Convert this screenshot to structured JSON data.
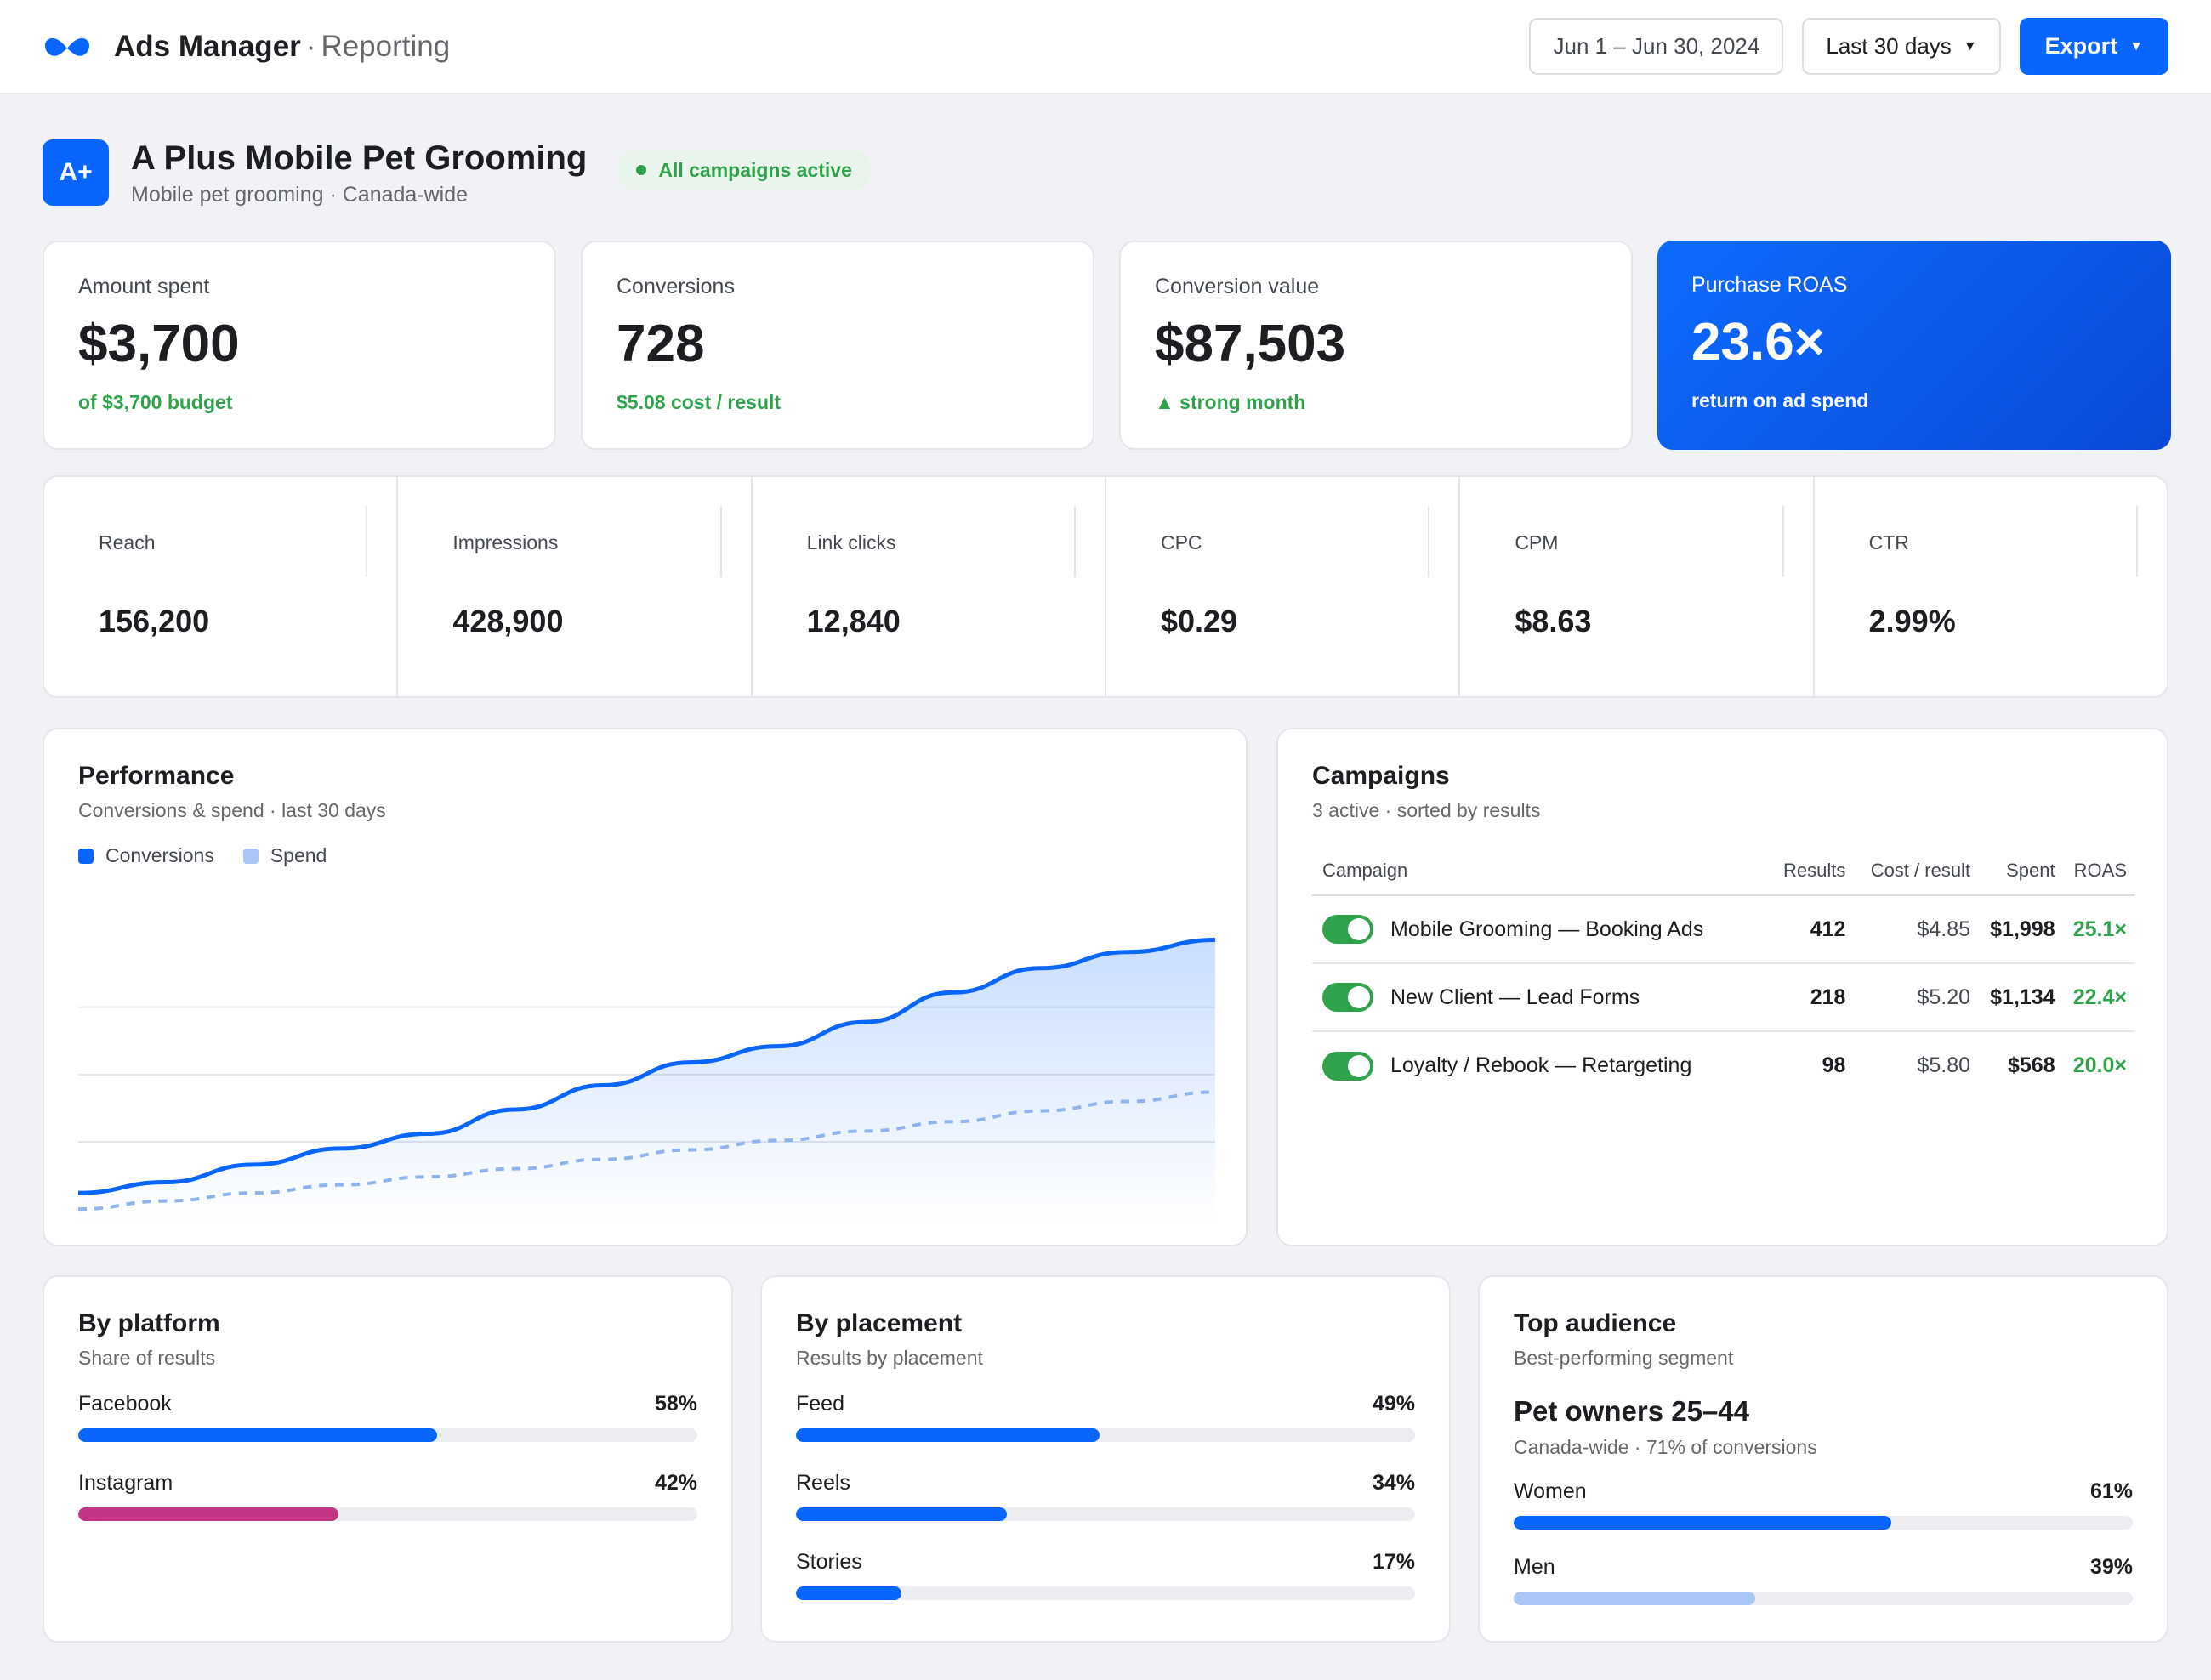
{
  "header": {
    "app_name": "Ads Manager",
    "separator": "·",
    "section": "Reporting",
    "date_range": "Jun 1 – Jun 30, 2024",
    "period": "Last 30 days",
    "export_label": "Export"
  },
  "account": {
    "badge": "A+",
    "name": "A Plus Mobile Pet Grooming",
    "description": "Mobile pet grooming · Canada-wide",
    "status": "All campaigns active"
  },
  "kpis": [
    {
      "label": "Amount spent",
      "value": "$3,700",
      "sub": "of $3,700 budget"
    },
    {
      "label": "Conversions",
      "value": "728",
      "sub": "$5.08 cost / result"
    },
    {
      "label": "Conversion value",
      "value": "$87,503",
      "sub": "▲ strong month"
    },
    {
      "label": "Purchase ROAS",
      "value": "23.6×",
      "sub": "return on ad spend"
    }
  ],
  "metrics": [
    {
      "label": "Reach",
      "value": "156,200"
    },
    {
      "label": "Impressions",
      "value": "428,900"
    },
    {
      "label": "Link clicks",
      "value": "12,840"
    },
    {
      "label": "CPC",
      "value": "$0.29"
    },
    {
      "label": "CPM",
      "value": "$8.63"
    },
    {
      "label": "CTR",
      "value": "2.99%"
    }
  ],
  "performance": {
    "title": "Performance",
    "subtitle": "Conversions & spend · last 30 days",
    "legend": [
      {
        "name": "Conversions",
        "color": "#0866ff"
      },
      {
        "name": "Spend",
        "color": "#a9c6f7"
      }
    ]
  },
  "chart_data": {
    "type": "area",
    "series": [
      {
        "name": "Conversions",
        "values": [
          0.12,
          0.2,
          0.33,
          0.45,
          0.56,
          0.74,
          0.92,
          1.09,
          1.21,
          1.39,
          1.61,
          1.79,
          1.91,
          2.0
        ]
      },
      {
        "name": "Spend",
        "values": [
          0.0,
          0.06,
          0.12,
          0.18,
          0.24,
          0.3,
          0.37,
          0.44,
          0.51,
          0.58,
          0.65,
          0.73,
          0.8,
          0.87
        ]
      }
    ],
    "ylim": [
      -0.1,
      2.3
    ],
    "grid": true
  },
  "campaigns": {
    "title": "Campaigns",
    "subtitle": "3 active · sorted by results",
    "columns": [
      "Campaign",
      "Results",
      "Cost / result",
      "Spent",
      "ROAS"
    ],
    "rows": [
      {
        "name": "Mobile Grooming — Booking Ads",
        "results": "412",
        "cost": "$4.85",
        "spent": "$1,998",
        "roas": "25.1×"
      },
      {
        "name": "New Client — Lead Forms",
        "results": "218",
        "cost": "$5.20",
        "spent": "$1,134",
        "roas": "22.4×"
      },
      {
        "name": "Loyalty / Rebook — Retargeting",
        "results": "98",
        "cost": "$5.80",
        "spent": "$568",
        "roas": "20.0×"
      }
    ]
  },
  "platform": {
    "title": "By platform",
    "subtitle": "Share of results",
    "items": [
      {
        "label": "Facebook",
        "pct": "58%",
        "value": 58,
        "color": "#0866ff"
      },
      {
        "label": "Instagram",
        "pct": "42%",
        "value": 42,
        "color": "#c13584"
      }
    ]
  },
  "placement": {
    "title": "By placement",
    "subtitle": "Results by placement",
    "items": [
      {
        "label": "Feed",
        "pct": "49%",
        "value": 49,
        "color": "#0866ff"
      },
      {
        "label": "Reels",
        "pct": "34%",
        "value": 34,
        "color": "#0866ff"
      },
      {
        "label": "Stories",
        "pct": "17%",
        "value": 17,
        "color": "#0866ff"
      }
    ]
  },
  "audience": {
    "title": "Top audience",
    "subtitle": "Best-performing segment",
    "segment": "Pet owners 25–44",
    "segment_desc": "Canada-wide · 71% of conversions",
    "items": [
      {
        "label": "Women",
        "pct": "61%",
        "value": 61,
        "color": "#0866ff"
      },
      {
        "label": "Men",
        "pct": "39%",
        "value": 39,
        "color": "#a9c6f7"
      }
    ]
  }
}
